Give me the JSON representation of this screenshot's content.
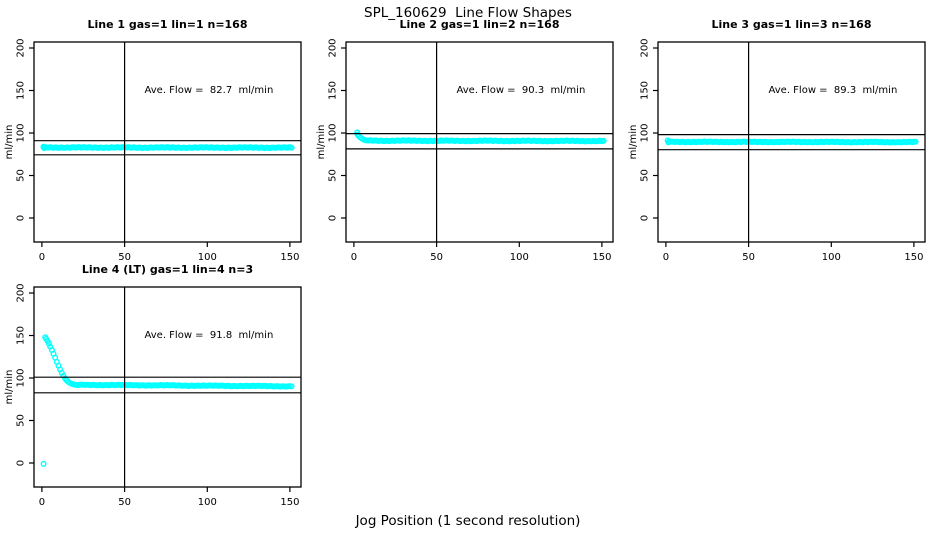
{
  "figure": {
    "title": "SPL_160629  Line Flow Shapes",
    "xlabel": "Jog Position (1 second resolution)",
    "background_color": "#FFFFFF",
    "axis_color": "#000000",
    "marker_color": "#00FFFF"
  },
  "chart_data": [
    {
      "type": "scatter",
      "title": "Line 1 gas=1 lin=1 n=168",
      "ylabel": "ml/min",
      "annotation": "Ave. Flow =  82.7  ml/min",
      "ave_flow_ml_min": 82.7,
      "n": 168,
      "x_ticks": [
        0,
        50,
        100,
        150
      ],
      "y_ticks": [
        0,
        50,
        100,
        150,
        200
      ],
      "xlim": [
        -4.8,
        156.7
      ],
      "ylim": [
        -28.2,
        207.1
      ],
      "grid": false,
      "legend": null,
      "ref_vline_x": 50,
      "ref_hlines_y": [
        91.0,
        74.4
      ],
      "annotation_pos": {
        "x": 101,
        "y": 150
      },
      "series": {
        "outliers": [],
        "transient": [
          [
            1,
            84.0
          ],
          [
            1.4,
            82.3
          ]
        ],
        "flat_n": 166,
        "flat_x_start": 1,
        "flat_x_end": 151,
        "baseline_start": 83.0,
        "baseline_end": 82.8,
        "noise": 0.55
      }
    },
    {
      "type": "scatter",
      "title": "Line 2 gas=1 lin=2 n=168",
      "ylabel": "ml/min",
      "annotation": "Ave. Flow =  90.3  ml/min",
      "ave_flow_ml_min": 90.3,
      "n": 168,
      "x_ticks": [
        0,
        50,
        100,
        150
      ],
      "y_ticks": [
        0,
        50,
        100,
        150,
        200
      ],
      "xlim": [
        -4.8,
        156.7
      ],
      "ylim": [
        -28.2,
        207.1
      ],
      "grid": false,
      "legend": null,
      "ref_vline_x": 50,
      "ref_hlines_y": [
        99.3,
        81.3
      ],
      "annotation_pos": {
        "x": 101,
        "y": 150
      },
      "series": {
        "outliers": [],
        "transient": [
          [
            2,
            100.8
          ],
          [
            2.2,
            98.3
          ],
          [
            3,
            96.4
          ],
          [
            4,
            94.6
          ],
          [
            5,
            93.2
          ],
          [
            6,
            92.2
          ],
          [
            7,
            91.6
          ],
          [
            8,
            91.2
          ]
        ],
        "flat_n": 160,
        "flat_x_start": 9,
        "flat_x_end": 151,
        "baseline_start": 91.0,
        "baseline_end": 90.6,
        "noise": 0.5
      }
    },
    {
      "type": "scatter",
      "title": "Line 3 gas=1 lin=3 n=168",
      "ylabel": "ml/min",
      "annotation": "Ave. Flow =  89.3  ml/min",
      "ave_flow_ml_min": 89.3,
      "n": 168,
      "x_ticks": [
        0,
        50,
        100,
        150
      ],
      "y_ticks": [
        0,
        50,
        100,
        150,
        200
      ],
      "xlim": [
        -4.8,
        156.7
      ],
      "ylim": [
        -28.2,
        207.1
      ],
      "grid": false,
      "legend": null,
      "ref_vline_x": 50,
      "ref_hlines_y": [
        98.2,
        80.4
      ],
      "annotation_pos": {
        "x": 101,
        "y": 150
      },
      "series": {
        "outliers": [],
        "transient": [
          [
            1,
            91.2
          ],
          [
            1.4,
            89.0
          ],
          [
            2,
            90.2
          ]
        ],
        "flat_n": 165,
        "flat_x_start": 2.5,
        "flat_x_end": 151,
        "baseline_start": 89.6,
        "baseline_end": 89.3,
        "noise": 0.5
      }
    },
    {
      "type": "scatter",
      "title": "Line 4 (LT) gas=1 lin=4 n=3",
      "ylabel": "ml/min",
      "annotation": "Ave. Flow =  91.8  ml/min",
      "ave_flow_ml_min": 91.8,
      "n": 3,
      "x_ticks": [
        0,
        50,
        100,
        150
      ],
      "y_ticks": [
        0,
        50,
        100,
        150,
        200
      ],
      "xlim": [
        -4.8,
        156.7
      ],
      "ylim": [
        -28.2,
        207.1
      ],
      "grid": false,
      "legend": null,
      "ref_vline_x": 50,
      "ref_hlines_y": [
        101.0,
        82.6
      ],
      "annotation_pos": {
        "x": 101,
        "y": 150
      },
      "series": {
        "outliers": [
          [
            1,
            -1
          ]
        ],
        "transient": [
          [
            2,
            148
          ],
          [
            2.6,
            146
          ],
          [
            3.4,
            143.5
          ],
          [
            4.2,
            140.5
          ],
          [
            5,
            137
          ],
          [
            6,
            133
          ],
          [
            7,
            128.5
          ],
          [
            8,
            124
          ],
          [
            9,
            119
          ],
          [
            10,
            114.5
          ],
          [
            11,
            110
          ],
          [
            12,
            106
          ],
          [
            13,
            102.5
          ],
          [
            14,
            99.5
          ],
          [
            15,
            97.2
          ],
          [
            16,
            95.5
          ],
          [
            17,
            94.2
          ],
          [
            18,
            93.3
          ],
          [
            19,
            92.7
          ],
          [
            20,
            92.2
          ],
          [
            21,
            91.9
          ],
          [
            22,
            91.7
          ]
        ],
        "flat_n": 129,
        "flat_x_start": 23,
        "flat_x_end": 151,
        "baseline_start": 92.0,
        "baseline_end": 90.3,
        "noise": 0.5
      }
    }
  ]
}
